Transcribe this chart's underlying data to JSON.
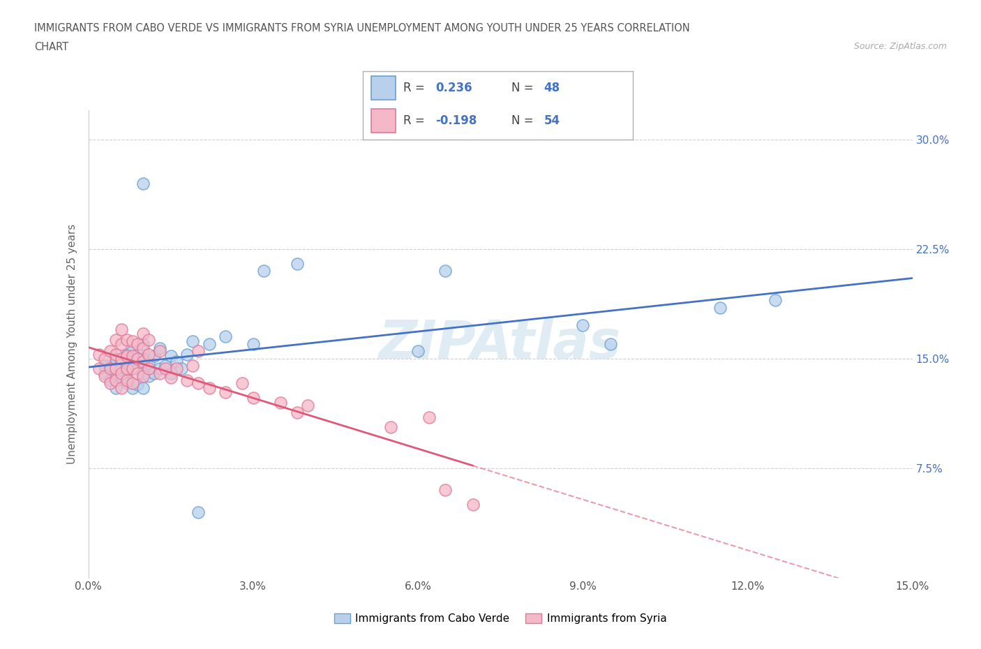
{
  "title_line1": "IMMIGRANTS FROM CABO VERDE VS IMMIGRANTS FROM SYRIA UNEMPLOYMENT AMONG YOUTH UNDER 25 YEARS CORRELATION",
  "title_line2": "CHART",
  "source_text": "Source: ZipAtlas.com",
  "ylabel": "Unemployment Among Youth under 25 years",
  "xlim": [
    0.0,
    0.15
  ],
  "ylim": [
    0.0,
    0.32
  ],
  "xticks": [
    0.0,
    0.03,
    0.06,
    0.09,
    0.12,
    0.15
  ],
  "xtick_labels": [
    "0.0%",
    "3.0%",
    "6.0%",
    "9.0%",
    "12.0%",
    "15.0%"
  ],
  "yticks": [
    0.075,
    0.15,
    0.225,
    0.3
  ],
  "ytick_labels": [
    "7.5%",
    "15.0%",
    "22.5%",
    "30.0%"
  ],
  "cabo_verde_fill": "#b8d0eb",
  "cabo_verde_edge": "#6aa0d0",
  "syria_fill": "#f5b8c8",
  "syria_edge": "#e07898",
  "cabo_verde_line_color": "#4472c4",
  "syria_line_color": "#e05878",
  "R_cabo": 0.236,
  "N_cabo": 48,
  "R_syria": -0.198,
  "N_syria": 54,
  "legend_cabo_label": "Immigrants from Cabo Verde",
  "legend_syria_label": "Immigrants from Syria",
  "watermark": "ZIPAtlas",
  "cabo_verde_x": [
    0.003,
    0.003,
    0.004,
    0.004,
    0.005,
    0.005,
    0.005,
    0.006,
    0.006,
    0.007,
    0.007,
    0.007,
    0.008,
    0.008,
    0.008,
    0.009,
    0.009,
    0.009,
    0.01,
    0.01,
    0.01,
    0.01,
    0.011,
    0.011,
    0.012,
    0.012,
    0.013,
    0.013,
    0.014,
    0.015,
    0.015,
    0.016,
    0.017,
    0.018,
    0.019,
    0.022,
    0.025,
    0.03,
    0.032,
    0.038,
    0.06,
    0.065,
    0.09,
    0.095,
    0.115,
    0.125,
    0.01,
    0.02
  ],
  "cabo_verde_y": [
    0.14,
    0.145,
    0.135,
    0.145,
    0.13,
    0.138,
    0.15,
    0.138,
    0.148,
    0.133,
    0.142,
    0.153,
    0.13,
    0.143,
    0.155,
    0.132,
    0.143,
    0.153,
    0.13,
    0.14,
    0.15,
    0.16,
    0.138,
    0.147,
    0.14,
    0.152,
    0.143,
    0.157,
    0.145,
    0.14,
    0.152,
    0.148,
    0.143,
    0.153,
    0.162,
    0.16,
    0.165,
    0.16,
    0.21,
    0.215,
    0.155,
    0.21,
    0.173,
    0.16,
    0.185,
    0.19,
    0.27,
    0.045
  ],
  "syria_x": [
    0.002,
    0.002,
    0.003,
    0.003,
    0.004,
    0.004,
    0.004,
    0.005,
    0.005,
    0.005,
    0.005,
    0.006,
    0.006,
    0.006,
    0.006,
    0.006,
    0.007,
    0.007,
    0.007,
    0.007,
    0.008,
    0.008,
    0.008,
    0.008,
    0.009,
    0.009,
    0.009,
    0.01,
    0.01,
    0.01,
    0.01,
    0.011,
    0.011,
    0.011,
    0.013,
    0.013,
    0.014,
    0.015,
    0.016,
    0.018,
    0.019,
    0.02,
    0.02,
    0.022,
    0.025,
    0.028,
    0.03,
    0.035,
    0.038,
    0.04,
    0.055,
    0.062,
    0.065,
    0.07
  ],
  "syria_y": [
    0.143,
    0.153,
    0.138,
    0.15,
    0.133,
    0.143,
    0.155,
    0.135,
    0.143,
    0.153,
    0.163,
    0.13,
    0.14,
    0.15,
    0.16,
    0.17,
    0.135,
    0.143,
    0.152,
    0.163,
    0.133,
    0.143,
    0.152,
    0.162,
    0.14,
    0.15,
    0.16,
    0.138,
    0.148,
    0.157,
    0.167,
    0.143,
    0.153,
    0.163,
    0.14,
    0.155,
    0.143,
    0.137,
    0.143,
    0.135,
    0.145,
    0.133,
    0.155,
    0.13,
    0.127,
    0.133,
    0.123,
    0.12,
    0.113,
    0.118,
    0.103,
    0.11,
    0.06,
    0.05
  ],
  "background_color": "#ffffff",
  "grid_color": "#d0d0d0",
  "title_color": "#555555",
  "axis_label_color": "#666666",
  "tick_label_color": "#4472c4",
  "source_color": "#aaaaaa"
}
